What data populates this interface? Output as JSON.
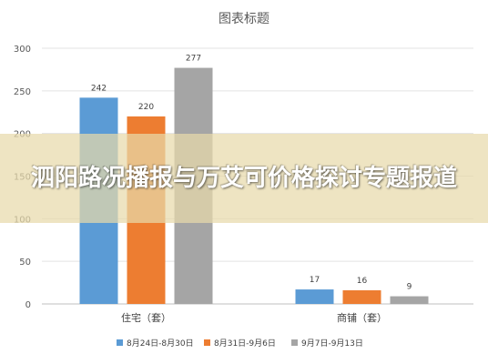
{
  "banner": {
    "title": "泗阳路况播报与万艾可价格探讨专题报道"
  },
  "chart_data": {
    "type": "bar",
    "title": "图表标题",
    "categories": [
      "住宅（套）",
      "商铺（套）"
    ],
    "series": [
      {
        "name": "8月24日-8月30日",
        "values": [
          242,
          17
        ],
        "color": "#5b9bd5"
      },
      {
        "name": "8月31日-9月6日",
        "values": [
          220,
          16
        ],
        "color": "#ed7d31"
      },
      {
        "name": "9月7日-9月13日",
        "values": [
          277,
          9
        ],
        "color": "#a5a5a5"
      }
    ],
    "ylim": [
      0,
      300
    ],
    "yticks": [
      0,
      50,
      100,
      150,
      200,
      250,
      300
    ],
    "grid": true,
    "legend_position": "bottom"
  }
}
